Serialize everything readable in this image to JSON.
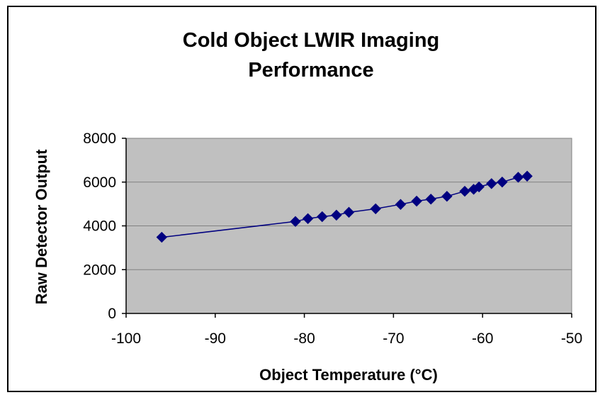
{
  "chart_data": {
    "type": "line",
    "title_lines": [
      "Cold Object LWIR Imaging",
      "Performance"
    ],
    "xlabel": "Object Temperature (°C)",
    "ylabel": "Raw Detector Output",
    "xlim": [
      -100,
      -50
    ],
    "ylim": [
      0,
      8000
    ],
    "x_ticks": [
      -100,
      -90,
      -80,
      -70,
      -60,
      -50
    ],
    "y_ticks": [
      0,
      2000,
      4000,
      6000,
      8000
    ],
    "grid": "horizontal",
    "legend": "none",
    "colors": {
      "plot_background": "#c0c0c0",
      "series": "#000080",
      "gridline": "#808080"
    },
    "marker": "diamond",
    "series": [
      {
        "x": [
          -96,
          -81,
          -79.6,
          -78,
          -76.4,
          -75,
          -72,
          -69.2,
          -67.4,
          -65.8,
          -64,
          -62,
          -61,
          -60.4,
          -59,
          -57.8,
          -56,
          -55
        ],
        "y": [
          3480,
          4200,
          4330,
          4420,
          4490,
          4620,
          4780,
          4980,
          5130,
          5220,
          5350,
          5580,
          5670,
          5780,
          5930,
          6000,
          6220,
          6270
        ]
      }
    ]
  }
}
